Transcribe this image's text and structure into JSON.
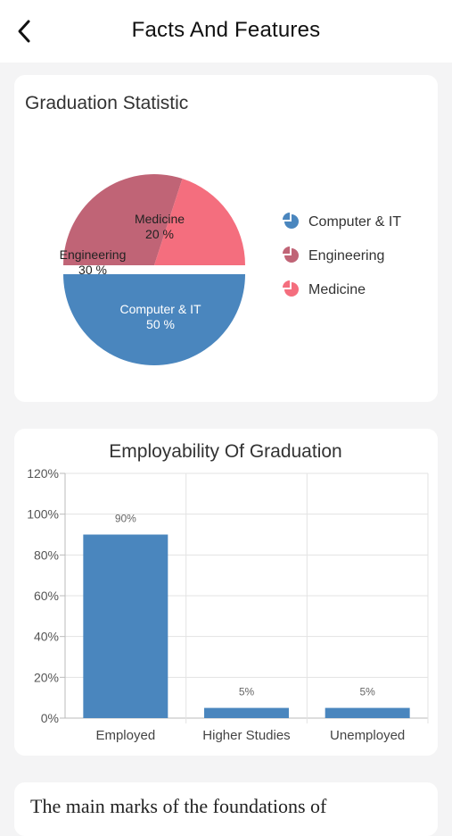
{
  "header": {
    "title": "Facts And Features"
  },
  "pie_card": {
    "title": "Graduation Statistic"
  },
  "bar_card": {
    "title": "Employability Of Graduation"
  },
  "info_card": {
    "text": "The main marks of the foundations of"
  },
  "chart_data": [
    {
      "type": "pie",
      "title": "Graduation Statistic",
      "slices": [
        {
          "label": "Computer & IT",
          "value": 50,
          "color": "#4a86be",
          "exploded": true
        },
        {
          "label": "Engineering",
          "value": 30,
          "color": "#c06476"
        },
        {
          "label": "Medicine",
          "value": 20,
          "color": "#f46e7e"
        }
      ],
      "legend": [
        "Computer & IT",
        "Engineering",
        "Medicine"
      ],
      "legend_position": "right",
      "data_labels": {
        "Computer & IT": "50 %",
        "Engineering": "30 %",
        "Medicine": "20 %"
      }
    },
    {
      "type": "bar",
      "title": "Employability Of Graduation",
      "categories": [
        "Employed",
        "Higher Studies",
        "Unemployed"
      ],
      "values": [
        90,
        5,
        5
      ],
      "data_labels": [
        "90%",
        "5%",
        "5%"
      ],
      "ylim": [
        0,
        120
      ],
      "yticks": [
        0,
        20,
        40,
        60,
        80,
        100,
        120
      ],
      "ytick_labels": [
        "0%",
        "20%",
        "40%",
        "60%",
        "80%",
        "100%",
        "120%"
      ],
      "grid": true,
      "bar_color": "#4a86be"
    }
  ]
}
